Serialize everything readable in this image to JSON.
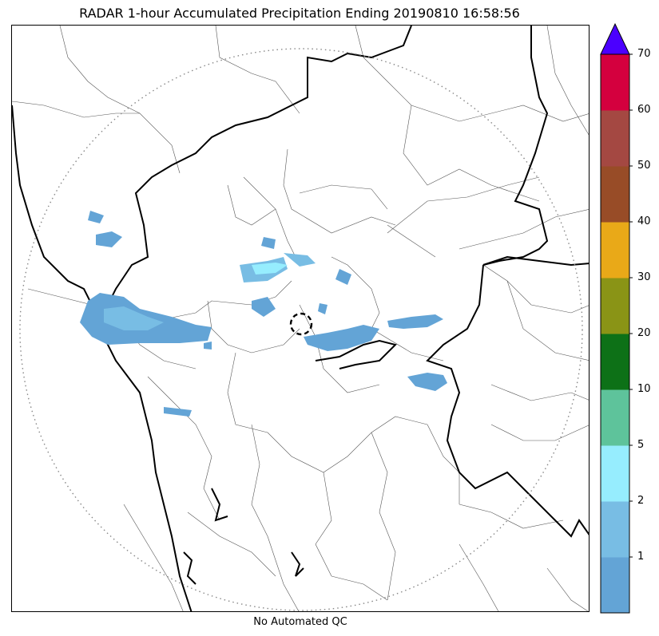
{
  "title": "RADAR 1-hour Accumulated Precipitation Ending 20190810 16:58:56",
  "footer": "No Automated QC",
  "colorbar": {
    "extend": "max",
    "overflow_color": "#4b00ff",
    "bins": [
      {
        "lower": 0,
        "upper": 1,
        "color": "#63a4d6"
      },
      {
        "lower": 1,
        "upper": 2,
        "color": "#78bde4"
      },
      {
        "lower": 2,
        "upper": 5,
        "color": "#96edfe"
      },
      {
        "lower": 5,
        "upper": 10,
        "color": "#5ec39b"
      },
      {
        "lower": 10,
        "upper": 20,
        "color": "#0d7117"
      },
      {
        "lower": 20,
        "upper": 30,
        "color": "#8a9416"
      },
      {
        "lower": 30,
        "upper": 40,
        "color": "#e9a918"
      },
      {
        "lower": 40,
        "upper": 50,
        "color": "#984c27"
      },
      {
        "lower": 50,
        "upper": 60,
        "color": "#a44842"
      },
      {
        "lower": 60,
        "upper": 70,
        "color": "#d4003e"
      }
    ],
    "tick_labels": [
      "1",
      "2",
      "5",
      "10",
      "20",
      "30",
      "40",
      "50",
      "60",
      "70"
    ]
  },
  "map": {
    "range_ring": "dotted",
    "radar_site_marker": "dashed-circle",
    "state_border_color": "#000000",
    "district_border_color": "#555555"
  }
}
